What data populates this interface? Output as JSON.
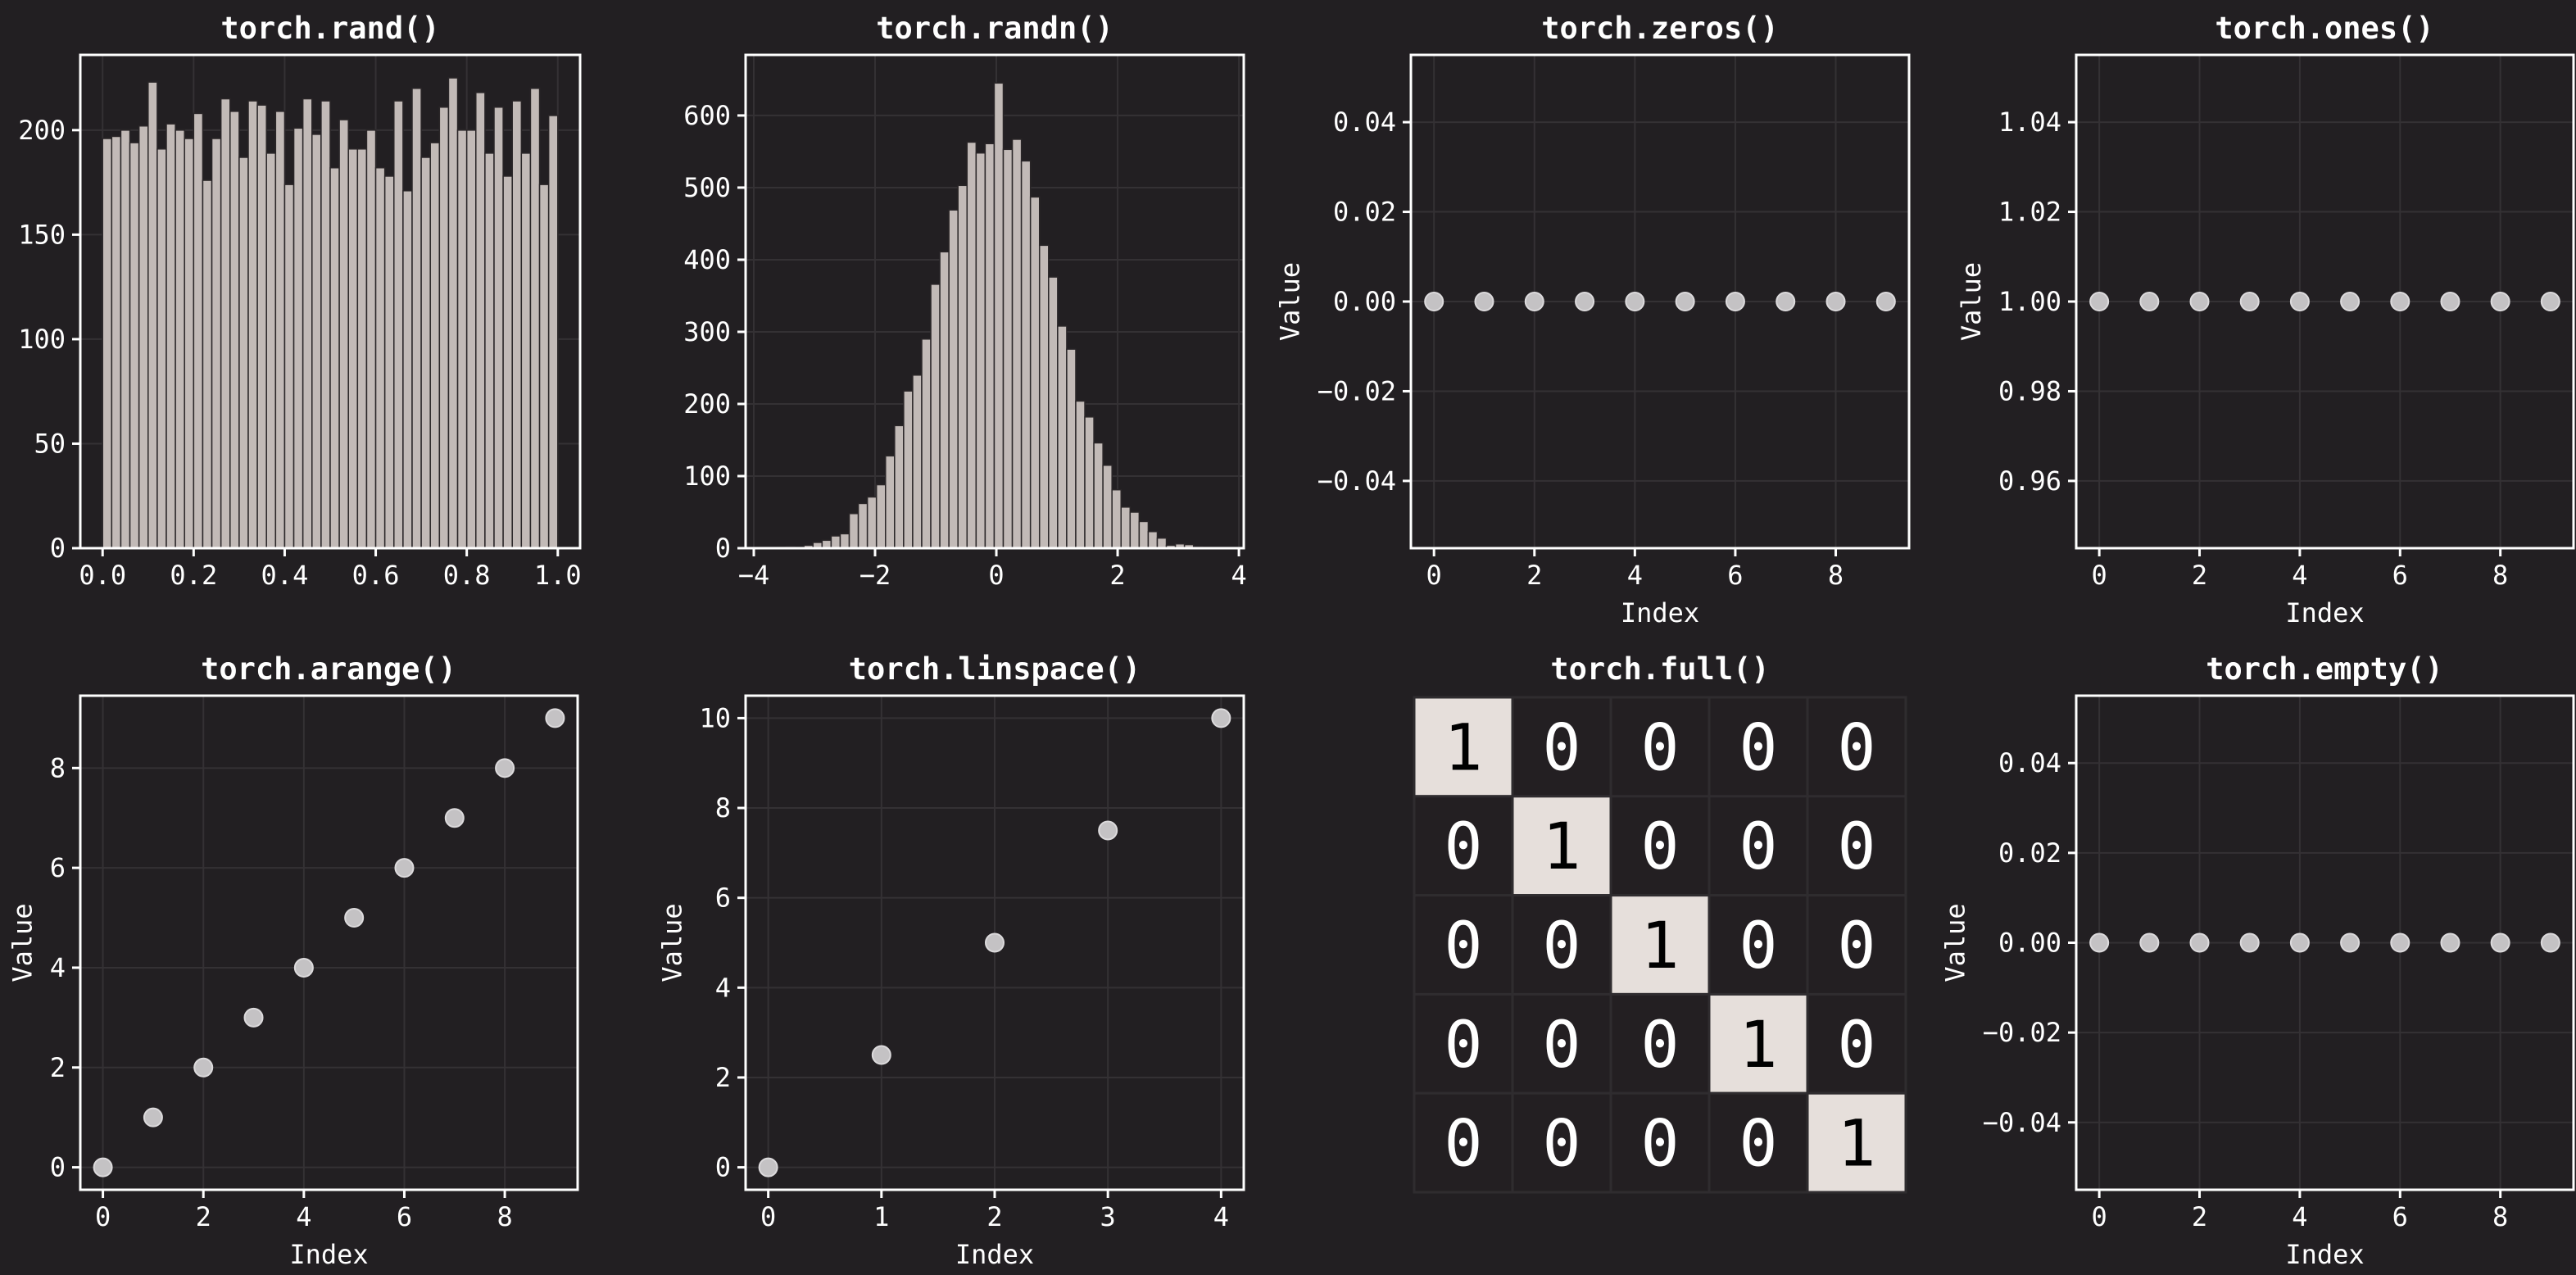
{
  "figure": {
    "background": "#221f22",
    "grid_color": "#343134",
    "frame_color": "#ffffff",
    "bar_color": "#c2bab7",
    "bar_edge": "#2a2628",
    "marker_color": "#c4c2c4",
    "marker_edge": "#dcdadc",
    "heat_high": "#e6dfdb",
    "heat_low": "#231f22",
    "heat_sep": "#2f2c2f"
  },
  "chart_data": [
    {
      "id": "rand",
      "type": "bar",
      "title": "torch.rand()",
      "xlabel": "",
      "ylabel": "",
      "grid": true,
      "xlim": [
        -0.049,
        1.049
      ],
      "ylim": [
        0,
        236
      ],
      "xticks": [
        0.0,
        0.2,
        0.4,
        0.6,
        0.8,
        1.0
      ],
      "xtick_labels": [
        "0.0",
        "0.2",
        "0.4",
        "0.6",
        "0.8",
        "1.0"
      ],
      "yticks": [
        0,
        50,
        100,
        150,
        200
      ],
      "ytick_labels": [
        "0",
        "50",
        "100",
        "150",
        "200"
      ],
      "bin_range": [
        0.0,
        1.0
      ],
      "values": [
        196,
        197,
        200,
        194,
        202,
        223,
        191,
        203,
        200,
        196,
        208,
        176,
        196,
        215,
        209,
        187,
        214,
        212,
        189,
        209,
        174,
        201,
        215,
        198,
        214,
        182,
        205,
        191,
        191,
        200,
        182,
        178,
        214,
        171,
        220,
        187,
        194,
        211,
        225,
        200,
        200,
        218,
        189,
        211,
        178,
        214,
        189,
        220,
        174,
        207
      ]
    },
    {
      "id": "randn",
      "type": "bar",
      "title": "torch.randn()",
      "xlabel": "",
      "ylabel": "",
      "grid": true,
      "xlim": [
        -4.135,
        4.08
      ],
      "ylim": [
        0,
        684
      ],
      "xticks": [
        -4,
        -2,
        0,
        2,
        4
      ],
      "xtick_labels": [
        "−4",
        "−2",
        "0",
        "2",
        "4"
      ],
      "yticks": [
        0,
        100,
        200,
        300,
        400,
        500,
        600
      ],
      "ytick_labels": [
        "0",
        "100",
        "200",
        "300",
        "400",
        "500",
        "600"
      ],
      "bin_range": [
        -3.77,
        3.7
      ],
      "values": [
        0,
        1,
        2,
        1,
        4,
        8,
        11,
        17,
        20,
        48,
        62,
        71,
        88,
        128,
        170,
        218,
        240,
        290,
        366,
        411,
        469,
        503,
        563,
        548,
        561,
        645,
        553,
        567,
        537,
        487,
        420,
        376,
        308,
        276,
        204,
        182,
        146,
        115,
        81,
        57,
        50,
        37,
        23,
        14,
        4,
        6,
        5,
        2,
        1,
        0
      ]
    },
    {
      "id": "zeros",
      "type": "scatter",
      "title": "torch.zeros()",
      "xlabel": "Index",
      "ylabel": "Value",
      "grid": true,
      "xlim": [
        -0.46,
        9.46
      ],
      "ylim": [
        -0.055,
        0.055
      ],
      "xticks": [
        0,
        2,
        4,
        6,
        8
      ],
      "xtick_labels": [
        "0",
        "2",
        "4",
        "6",
        "8"
      ],
      "yticks": [
        -0.04,
        -0.02,
        0.0,
        0.02,
        0.04
      ],
      "ytick_labels": [
        "−0.04",
        "−0.02",
        "0.00",
        "0.02",
        "0.04"
      ],
      "x": [
        0,
        1,
        2,
        3,
        4,
        5,
        6,
        7,
        8,
        9
      ],
      "y": [
        0,
        0,
        0,
        0,
        0,
        0,
        0,
        0,
        0,
        0
      ]
    },
    {
      "id": "ones",
      "type": "scatter",
      "title": "torch.ones()",
      "xlabel": "Index",
      "ylabel": "Value",
      "grid": true,
      "xlim": [
        -0.46,
        9.46
      ],
      "ylim": [
        0.945,
        1.055
      ],
      "xticks": [
        0,
        2,
        4,
        6,
        8
      ],
      "xtick_labels": [
        "0",
        "2",
        "4",
        "6",
        "8"
      ],
      "yticks": [
        0.96,
        0.98,
        1.0,
        1.02,
        1.04
      ],
      "ytick_labels": [
        "0.96",
        "0.98",
        "1.00",
        "1.02",
        "1.04"
      ],
      "x": [
        0,
        1,
        2,
        3,
        4,
        5,
        6,
        7,
        8,
        9
      ],
      "y": [
        1,
        1,
        1,
        1,
        1,
        1,
        1,
        1,
        1,
        1
      ]
    },
    {
      "id": "arange",
      "type": "scatter",
      "title": "torch.arange()",
      "xlabel": "Index",
      "ylabel": "Value",
      "grid": true,
      "xlim": [
        -0.45,
        9.45
      ],
      "ylim": [
        -0.45,
        9.45
      ],
      "xticks": [
        0,
        2,
        4,
        6,
        8
      ],
      "xtick_labels": [
        "0",
        "2",
        "4",
        "6",
        "8"
      ],
      "yticks": [
        0,
        2,
        4,
        6,
        8
      ],
      "ytick_labels": [
        "0",
        "2",
        "4",
        "6",
        "8"
      ],
      "x": [
        0,
        1,
        2,
        3,
        4,
        5,
        6,
        7,
        8,
        9
      ],
      "y": [
        0,
        1,
        2,
        3,
        4,
        5,
        6,
        7,
        8,
        9
      ]
    },
    {
      "id": "linspace",
      "type": "scatter",
      "title": "torch.linspace()",
      "xlabel": "Index",
      "ylabel": "Value",
      "grid": true,
      "xlim": [
        -0.2,
        4.2
      ],
      "ylim": [
        -0.5,
        10.5
      ],
      "xticks": [
        0,
        1,
        2,
        3,
        4
      ],
      "xtick_labels": [
        "0",
        "1",
        "2",
        "3",
        "4"
      ],
      "yticks": [
        0,
        2,
        4,
        6,
        8,
        10
      ],
      "ytick_labels": [
        "0",
        "2",
        "4",
        "6",
        "8",
        "10"
      ],
      "x": [
        0,
        1,
        2,
        3,
        4
      ],
      "y": [
        0,
        2.5,
        5,
        7.5,
        10
      ]
    },
    {
      "id": "full",
      "type": "heatmap",
      "title": "torch.full()",
      "xlabel": "",
      "ylabel": "",
      "grid": false,
      "matrix": [
        [
          1,
          0,
          0,
          0,
          0
        ],
        [
          0,
          1,
          0,
          0,
          0
        ],
        [
          0,
          0,
          1,
          0,
          0
        ],
        [
          0,
          0,
          0,
          1,
          0
        ],
        [
          0,
          0,
          0,
          0,
          1
        ]
      ],
      "annotations": true
    },
    {
      "id": "empty",
      "type": "scatter",
      "title": "torch.empty()",
      "xlabel": "Index",
      "ylabel": "Value",
      "grid": true,
      "xlim": [
        -0.46,
        9.46
      ],
      "ylim": [
        -0.055,
        0.055
      ],
      "xticks": [
        0,
        2,
        4,
        6,
        8
      ],
      "xtick_labels": [
        "0",
        "2",
        "4",
        "6",
        "8"
      ],
      "yticks": [
        -0.04,
        -0.02,
        0.0,
        0.02,
        0.04
      ],
      "ytick_labels": [
        "−0.04",
        "−0.02",
        "0.00",
        "0.02",
        "0.04"
      ],
      "x": [
        0,
        1,
        2,
        3,
        4,
        5,
        6,
        7,
        8,
        9
      ],
      "y": [
        0,
        0,
        0,
        0,
        0,
        0,
        0,
        0,
        0,
        0
      ]
    }
  ]
}
